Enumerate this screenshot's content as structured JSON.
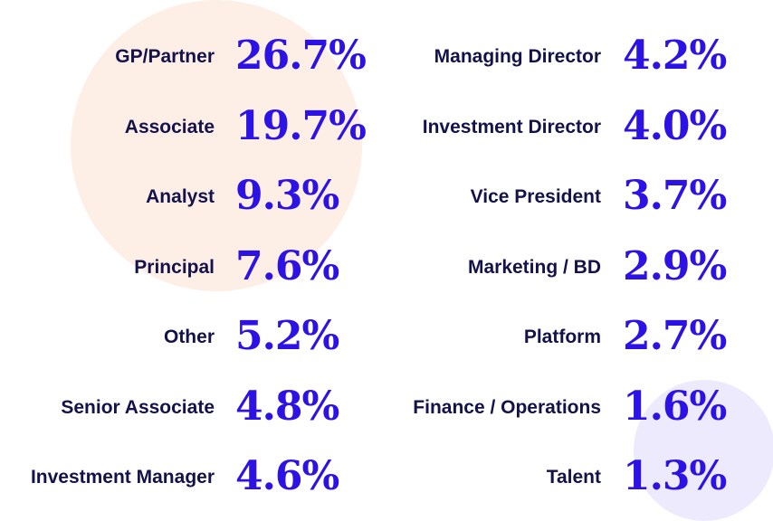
{
  "colors": {
    "label": "#14124a",
    "value": "#2d12e6",
    "blob_peach": "#fdeee6",
    "blob_lavender": "#eceafc"
  },
  "chart_data": {
    "type": "table",
    "title": "",
    "unit": "%",
    "left_column": [
      {
        "label": "GP/Partner",
        "value": 26.7,
        "display": "26.7%"
      },
      {
        "label": "Associate",
        "value": 19.7,
        "display": "19.7%"
      },
      {
        "label": "Analyst",
        "value": 9.3,
        "display": "9.3%"
      },
      {
        "label": "Principal",
        "value": 7.6,
        "display": "7.6%"
      },
      {
        "label": "Other",
        "value": 5.2,
        "display": "5.2%"
      },
      {
        "label": "Senior Associate",
        "value": 4.8,
        "display": "4.8%"
      },
      {
        "label": "Investment Manager",
        "value": 4.6,
        "display": "4.6%"
      }
    ],
    "right_column": [
      {
        "label": "Managing Director",
        "value": 4.2,
        "display": "4.2%"
      },
      {
        "label": "Investment Director",
        "value": 4.0,
        "display": "4.0%"
      },
      {
        "label": "Vice President",
        "value": 3.7,
        "display": "3.7%"
      },
      {
        "label": "Marketing / BD",
        "value": 2.9,
        "display": "2.9%"
      },
      {
        "label": "Platform",
        "value": 2.7,
        "display": "2.7%"
      },
      {
        "label": "Finance / Operations",
        "value": 1.6,
        "display": "1.6%"
      },
      {
        "label": "Talent",
        "value": 1.3,
        "display": "1.3%"
      }
    ]
  }
}
